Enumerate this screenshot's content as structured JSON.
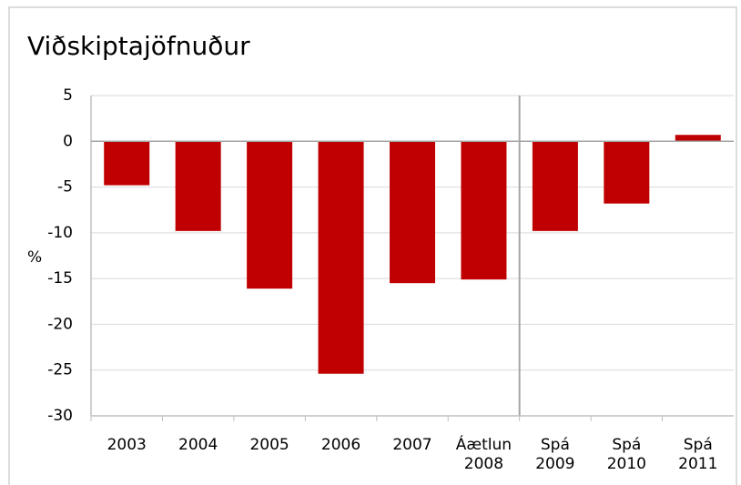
{
  "chart_data": {
    "type": "bar",
    "title": "Viðskiptajöfnuður",
    "y_label": "%",
    "categories": [
      "2003",
      "2004",
      "2005",
      "2006",
      "2007",
      "Áætlun\n2008",
      "Spá\n2009",
      "Spá\n2010",
      "Spá\n2011"
    ],
    "values": [
      -4.8,
      -9.8,
      -16.1,
      -25.4,
      -15.5,
      -15.1,
      -9.8,
      -6.8,
      0.7
    ],
    "color": "#c00000",
    "ylim": [
      -30,
      5
    ],
    "yticks": [
      5,
      0,
      -5,
      -10,
      -15,
      -20,
      -25,
      -30
    ],
    "grid": true
  }
}
